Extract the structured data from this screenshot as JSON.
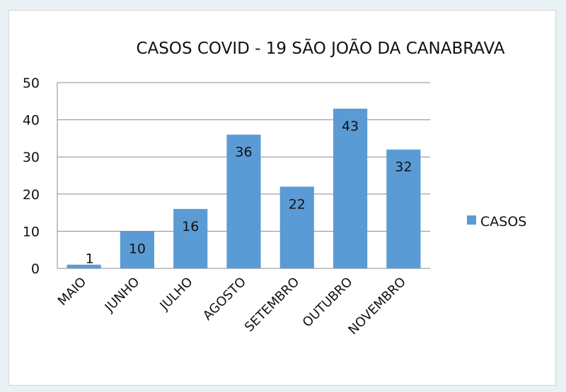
{
  "chart_data": {
    "type": "bar",
    "title": "CASOS COVID - 19 SÃO JOÃO DA CANABRAVA",
    "xlabel": "",
    "ylabel": "",
    "categories": [
      "MAIO",
      "JUNHO",
      "JULHO",
      "AGOSTO",
      "SETEMBRO",
      "OUTUBRO",
      "NOVEMBRO"
    ],
    "series": [
      {
        "name": "CASOS",
        "values": [
          1,
          10,
          16,
          36,
          22,
          43,
          32
        ],
        "color": "#5b9bd5"
      }
    ],
    "data_labels": [
      "1",
      "10",
      "16",
      "36",
      "22",
      "43",
      "32"
    ],
    "ylim": [
      0,
      50
    ],
    "yticks": [
      0,
      10,
      20,
      30,
      40,
      50
    ],
    "grid": true,
    "legend_position": "right"
  }
}
